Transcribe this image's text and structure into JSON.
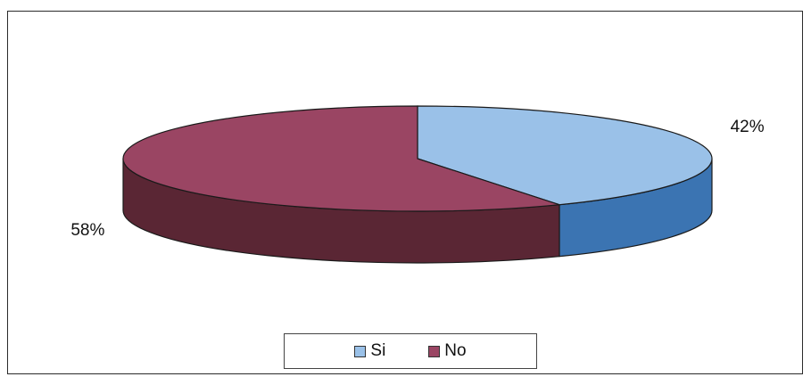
{
  "chart_data": {
    "type": "pie",
    "title": "",
    "categories": [
      "Si",
      "No"
    ],
    "values": [
      42,
      58
    ],
    "labels": [
      "42%",
      "58%"
    ],
    "colors": {
      "Si": {
        "top": "#9ac1e8",
        "side": "#3b74b2"
      },
      "No": {
        "top": "#9a4563",
        "side": "#5a2634"
      }
    },
    "legend_position": "bottom"
  },
  "legend": {
    "items": [
      {
        "label": "Si",
        "color": "#9ac1e8"
      },
      {
        "label": "No",
        "color": "#9a4563"
      }
    ]
  }
}
